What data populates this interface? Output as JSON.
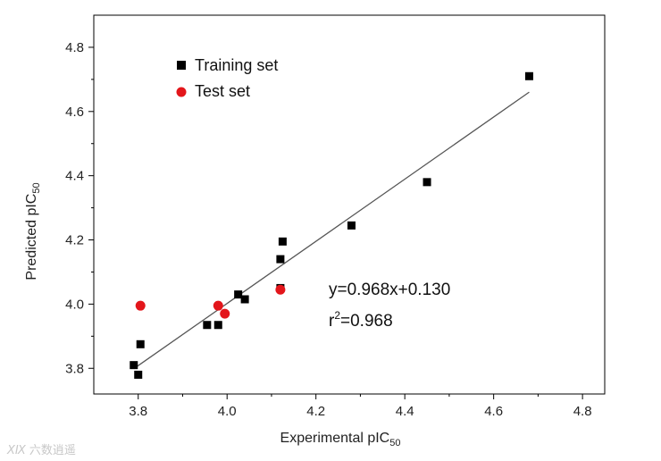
{
  "chart_data": {
    "type": "scatter",
    "xlabel": {
      "main": "Experimental pIC",
      "sub": "50"
    },
    "ylabel": {
      "main": "Predicted pIC",
      "sub": "50"
    },
    "xlim": [
      3.7,
      4.85
    ],
    "ylim": [
      3.72,
      4.9
    ],
    "xticks": [
      3.8,
      4.0,
      4.2,
      4.4,
      4.6,
      4.8
    ],
    "xtick_labels": [
      "3.8",
      "4.0",
      "4.2",
      "4.4",
      "4.6",
      "4.8"
    ],
    "yticks": [
      3.8,
      4.0,
      4.2,
      4.4,
      4.6,
      4.8
    ],
    "ytick_labels": [
      "3.8",
      "4.0",
      "4.2",
      "4.4",
      "4.6",
      "4.8"
    ],
    "series": [
      {
        "name": "Training set",
        "marker": "square",
        "color": "#000000",
        "points": [
          [
            3.79,
            3.81
          ],
          [
            3.8,
            3.78
          ],
          [
            3.805,
            3.875
          ],
          [
            3.955,
            3.935
          ],
          [
            3.98,
            3.935
          ],
          [
            4.025,
            4.03
          ],
          [
            4.04,
            4.015
          ],
          [
            4.12,
            4.05
          ],
          [
            4.12,
            4.14
          ],
          [
            4.125,
            4.195
          ],
          [
            4.28,
            4.245
          ],
          [
            4.45,
            4.38
          ],
          [
            4.68,
            4.71
          ]
        ]
      },
      {
        "name": "Test set",
        "marker": "circle",
        "color": "#e3161b",
        "points": [
          [
            3.805,
            3.995
          ],
          [
            3.98,
            3.995
          ],
          [
            3.995,
            3.97
          ],
          [
            4.12,
            4.045
          ]
        ]
      }
    ],
    "fit_line": {
      "slope": 0.968,
      "intercept": 0.13,
      "x_range": [
        3.79,
        4.68
      ],
      "color": "#555555"
    },
    "annotations": {
      "equation": "y=0.968x+0.130",
      "r2_base": "r",
      "r2_sup": "2",
      "r2_value": "=0.968"
    },
    "legend": {
      "position": "top-left",
      "entries": [
        "Training set",
        "Test set"
      ]
    }
  },
  "watermark": {
    "logo": "ⅩⅨ",
    "text": "六数逍遥"
  }
}
